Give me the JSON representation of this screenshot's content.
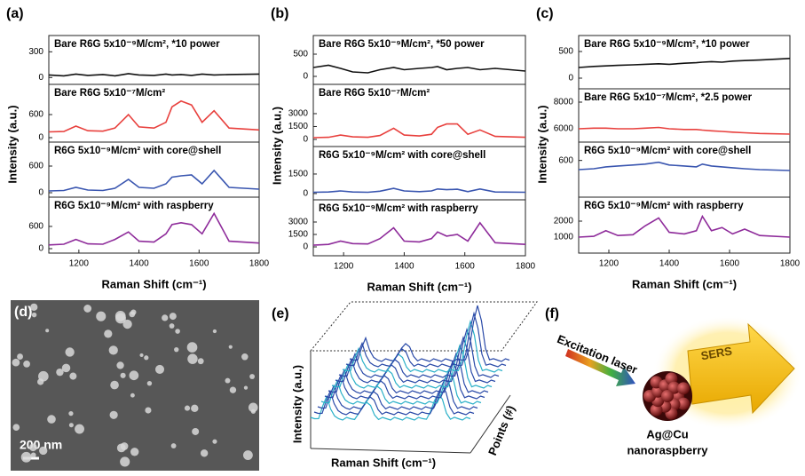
{
  "chart_data": [
    {
      "type": "line",
      "label": "(a)",
      "x_label": "Raman Shift (cm⁻¹)",
      "y_label": "Intensity (a.u.)",
      "x": [
        1100,
        1150,
        1190,
        1230,
        1280,
        1320,
        1365,
        1400,
        1450,
        1490,
        1510,
        1540,
        1575,
        1610,
        1650,
        1700,
        1800
      ],
      "xlim": [
        1100,
        1800
      ],
      "xticks": [
        1200,
        1400,
        1600,
        1800
      ],
      "subplots": [
        {
          "title": "Bare R6G 5x10⁻⁹M/cm², *10 power",
          "color": "#111111",
          "ylim": [
            -80,
            490
          ],
          "yticks": [
            0,
            300
          ],
          "values": [
            30,
            20,
            40,
            25,
            35,
            20,
            45,
            30,
            25,
            40,
            30,
            35,
            25,
            40,
            30,
            35,
            40
          ]
        },
        {
          "title": "Bare R6G 5x10⁻⁷M/cm²",
          "color": "#e8403d",
          "ylim": [
            -115,
            1385
          ],
          "yticks": [
            0,
            600
          ],
          "values": [
            150,
            160,
            300,
            180,
            170,
            250,
            600,
            280,
            250,
            400,
            800,
            950,
            850,
            400,
            700,
            250,
            200
          ]
        },
        {
          "title": "R6G 5x10⁻⁹M/cm² with core@shell",
          "color": "#3a56b0",
          "ylim": [
            -100,
            1140
          ],
          "yticks": [
            0,
            600
          ],
          "values": [
            40,
            50,
            120,
            60,
            50,
            100,
            300,
            120,
            100,
            200,
            350,
            380,
            400,
            200,
            500,
            120,
            80
          ]
        },
        {
          "title": "R6G 5x10⁻⁹M/cm² with raspberry",
          "color": "#8e2b9a",
          "ylim": [
            -120,
            1390
          ],
          "yticks": [
            0,
            600
          ],
          "values": [
            100,
            120,
            250,
            130,
            120,
            250,
            450,
            200,
            180,
            400,
            650,
            700,
            650,
            400,
            950,
            200,
            150
          ]
        }
      ]
    },
    {
      "type": "line",
      "label": "(b)",
      "x_label": "Raman Shift (cm⁻¹)",
      "y_label": "Intensity (a.u.)",
      "x": [
        1100,
        1150,
        1190,
        1230,
        1280,
        1320,
        1365,
        1400,
        1450,
        1490,
        1510,
        1540,
        1575,
        1610,
        1650,
        1700,
        1800
      ],
      "xlim": [
        1100,
        1800
      ],
      "xticks": [
        1200,
        1400,
        1600,
        1800
      ],
      "subplots": [
        {
          "title": "Bare R6G 5x10⁻⁹M/cm², *50 power",
          "color": "#111111",
          "ylim": [
            -180,
            920
          ],
          "yticks": [
            0,
            500
          ],
          "values": [
            200,
            250,
            180,
            100,
            80,
            150,
            200,
            150,
            180,
            200,
            220,
            150,
            180,
            200,
            150,
            180,
            120
          ]
        },
        {
          "title": "Bare R6G 5x10⁻⁷M/cm²",
          "color": "#e8403d",
          "ylim": [
            -830,
            6410
          ],
          "yticks": [
            0,
            1500,
            3000
          ],
          "values": [
            200,
            250,
            500,
            300,
            250,
            450,
            1300,
            500,
            400,
            600,
            1400,
            1800,
            1800,
            600,
            1100,
            350,
            250
          ]
        },
        {
          "title": "R6G 5x10⁻⁹M/cm² with core@shell",
          "color": "#3a56b0",
          "ylim": [
            -480,
            3610
          ],
          "yticks": [
            0,
            1500
          ],
          "values": [
            100,
            120,
            200,
            120,
            100,
            180,
            400,
            200,
            150,
            200,
            350,
            300,
            330,
            150,
            350,
            120,
            100
          ]
        },
        {
          "title": "R6G 5x10⁻⁹M/cm² with raspberry",
          "color": "#8e2b9a",
          "ylim": [
            -1070,
            5680
          ],
          "yticks": [
            0,
            1500,
            3000
          ],
          "values": [
            200,
            300,
            700,
            400,
            350,
            1000,
            2300,
            700,
            600,
            1000,
            1800,
            1300,
            1500,
            700,
            2900,
            500,
            300
          ]
        }
      ]
    },
    {
      "type": "line",
      "label": "(c)",
      "x_label": "Raman Shift (cm⁻¹)",
      "y_label": "Intensity (a.u.)",
      "x": [
        1100,
        1150,
        1190,
        1230,
        1280,
        1320,
        1365,
        1400,
        1450,
        1490,
        1510,
        1540,
        1575,
        1610,
        1650,
        1700,
        1800
      ],
      "xlim": [
        1100,
        1800
      ],
      "xticks": [
        1200,
        1400,
        1600,
        1800
      ],
      "subplots": [
        {
          "title": "Bare R6G 5x10⁻⁹M/cm², *10 power",
          "color": "#111111",
          "ylim": [
            -200,
            800
          ],
          "yticks": [
            0,
            500
          ],
          "values": [
            200,
            220,
            230,
            240,
            250,
            260,
            270,
            260,
            280,
            290,
            300,
            310,
            300,
            320,
            330,
            340,
            370
          ]
        },
        {
          "title": "Bare R6G 5x10⁻⁷M/cm², *2.5 power",
          "color": "#e8403d",
          "ylim": [
            5000,
            9000
          ],
          "yticks": [
            6000,
            8000
          ],
          "values": [
            6000,
            6050,
            6050,
            6000,
            6000,
            6050,
            6100,
            6000,
            5950,
            5950,
            5900,
            5850,
            5800,
            5750,
            5700,
            5650,
            5600
          ]
        },
        {
          "title": "R6G 5x10⁻⁹M/cm² with core@shell",
          "color": "#3a56b0",
          "ylim": [
            200,
            800
          ],
          "yticks": [
            600
          ],
          "values": [
            500,
            510,
            530,
            540,
            550,
            560,
            580,
            550,
            540,
            530,
            560,
            540,
            530,
            520,
            510,
            500,
            490
          ]
        },
        {
          "title": "R6G 5x10⁻⁹M/cm² with raspberry",
          "color": "#8e2b9a",
          "ylim": [
            0,
            3500
          ],
          "yticks": [
            1000,
            2000
          ],
          "values": [
            1000,
            1050,
            1400,
            1100,
            1150,
            1700,
            2200,
            1300,
            1200,
            1400,
            2300,
            1400,
            1600,
            1200,
            1500,
            1100,
            1000
          ]
        }
      ]
    }
  ],
  "panel_d": {
    "label": "(d)",
    "scale_bar": "200 nm"
  },
  "panel_e": {
    "label": "(e)",
    "x_label": "Raman Shift (cm⁻¹)",
    "y_label": "Intensity (a.u.)",
    "z_label": "Points (#)"
  },
  "panel_f": {
    "label": "(f)",
    "excitation": "Excitation laser",
    "signal": "SERS",
    "particle": "Ag@Cu",
    "particle_type": "nanoraspberry"
  }
}
